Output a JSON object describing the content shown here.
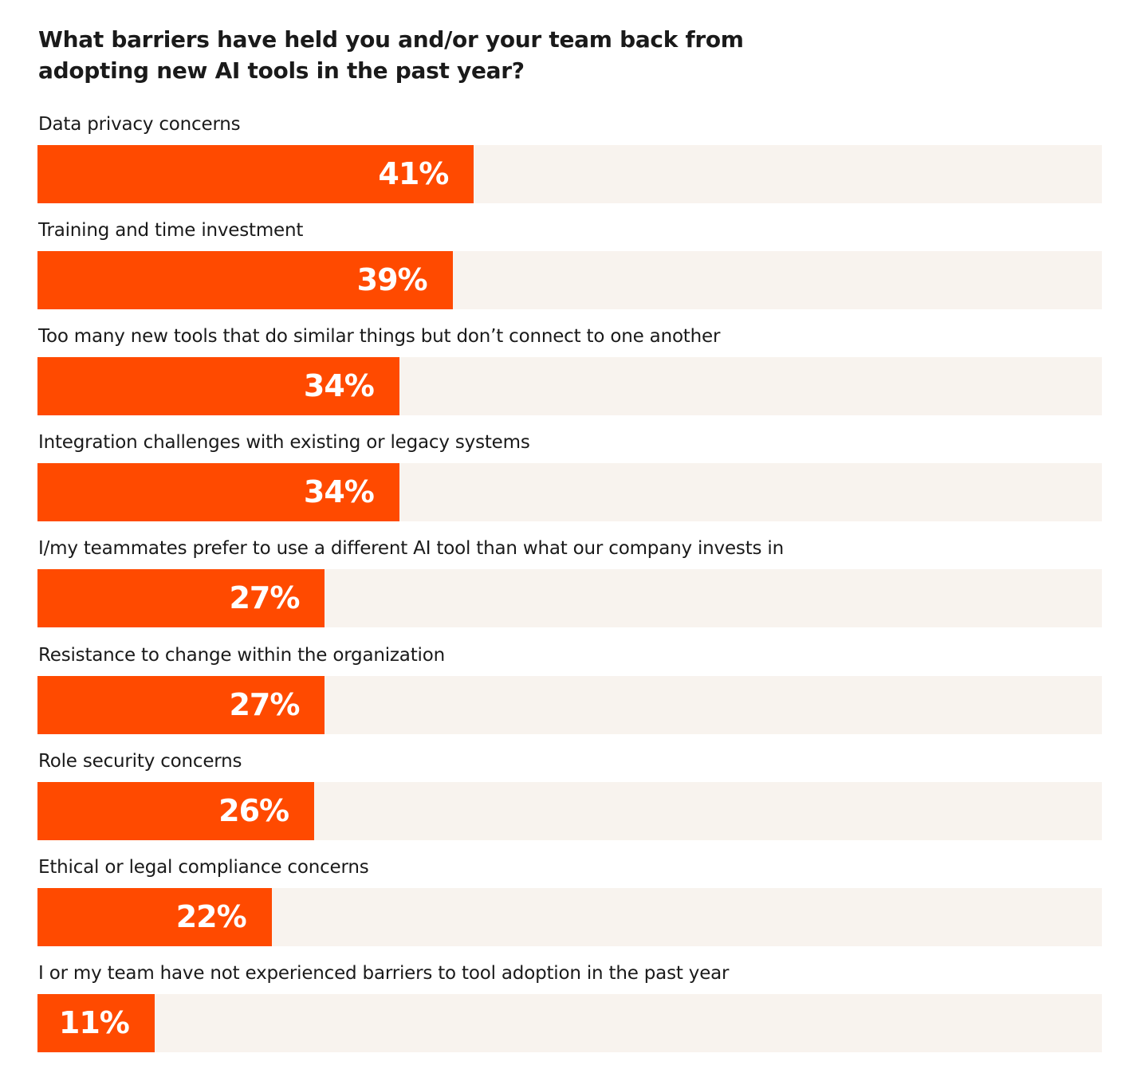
{
  "chart_data": {
    "type": "bar",
    "orientation": "horizontal",
    "title": "What barriers have held you and/or your team back from adopting new AI tools in the past year?",
    "categories": [
      "Data privacy concerns",
      "Training and time investment",
      "Too many new tools that do similar things but don’t connect to one another",
      "Integration challenges with existing or legacy systems",
      "I/my teammates prefer to use a different AI tool than what our company invests in",
      "Resistance to change within the organization",
      "Role security concerns",
      "Ethical or legal compliance concerns",
      "I or my team have not experienced barriers to tool adoption in the past year"
    ],
    "values": [
      41,
      39,
      34,
      34,
      27,
      27,
      26,
      22,
      11
    ],
    "value_labels": [
      "41%",
      "39%",
      "34%",
      "34%",
      "27%",
      "27%",
      "26%",
      "22%",
      "11%"
    ],
    "xlim": [
      0,
      100
    ],
    "grid": false,
    "colors": {
      "bar": "#FF4A00",
      "track": "#F8F3EE",
      "value_text": "#FFFFFF"
    }
  }
}
